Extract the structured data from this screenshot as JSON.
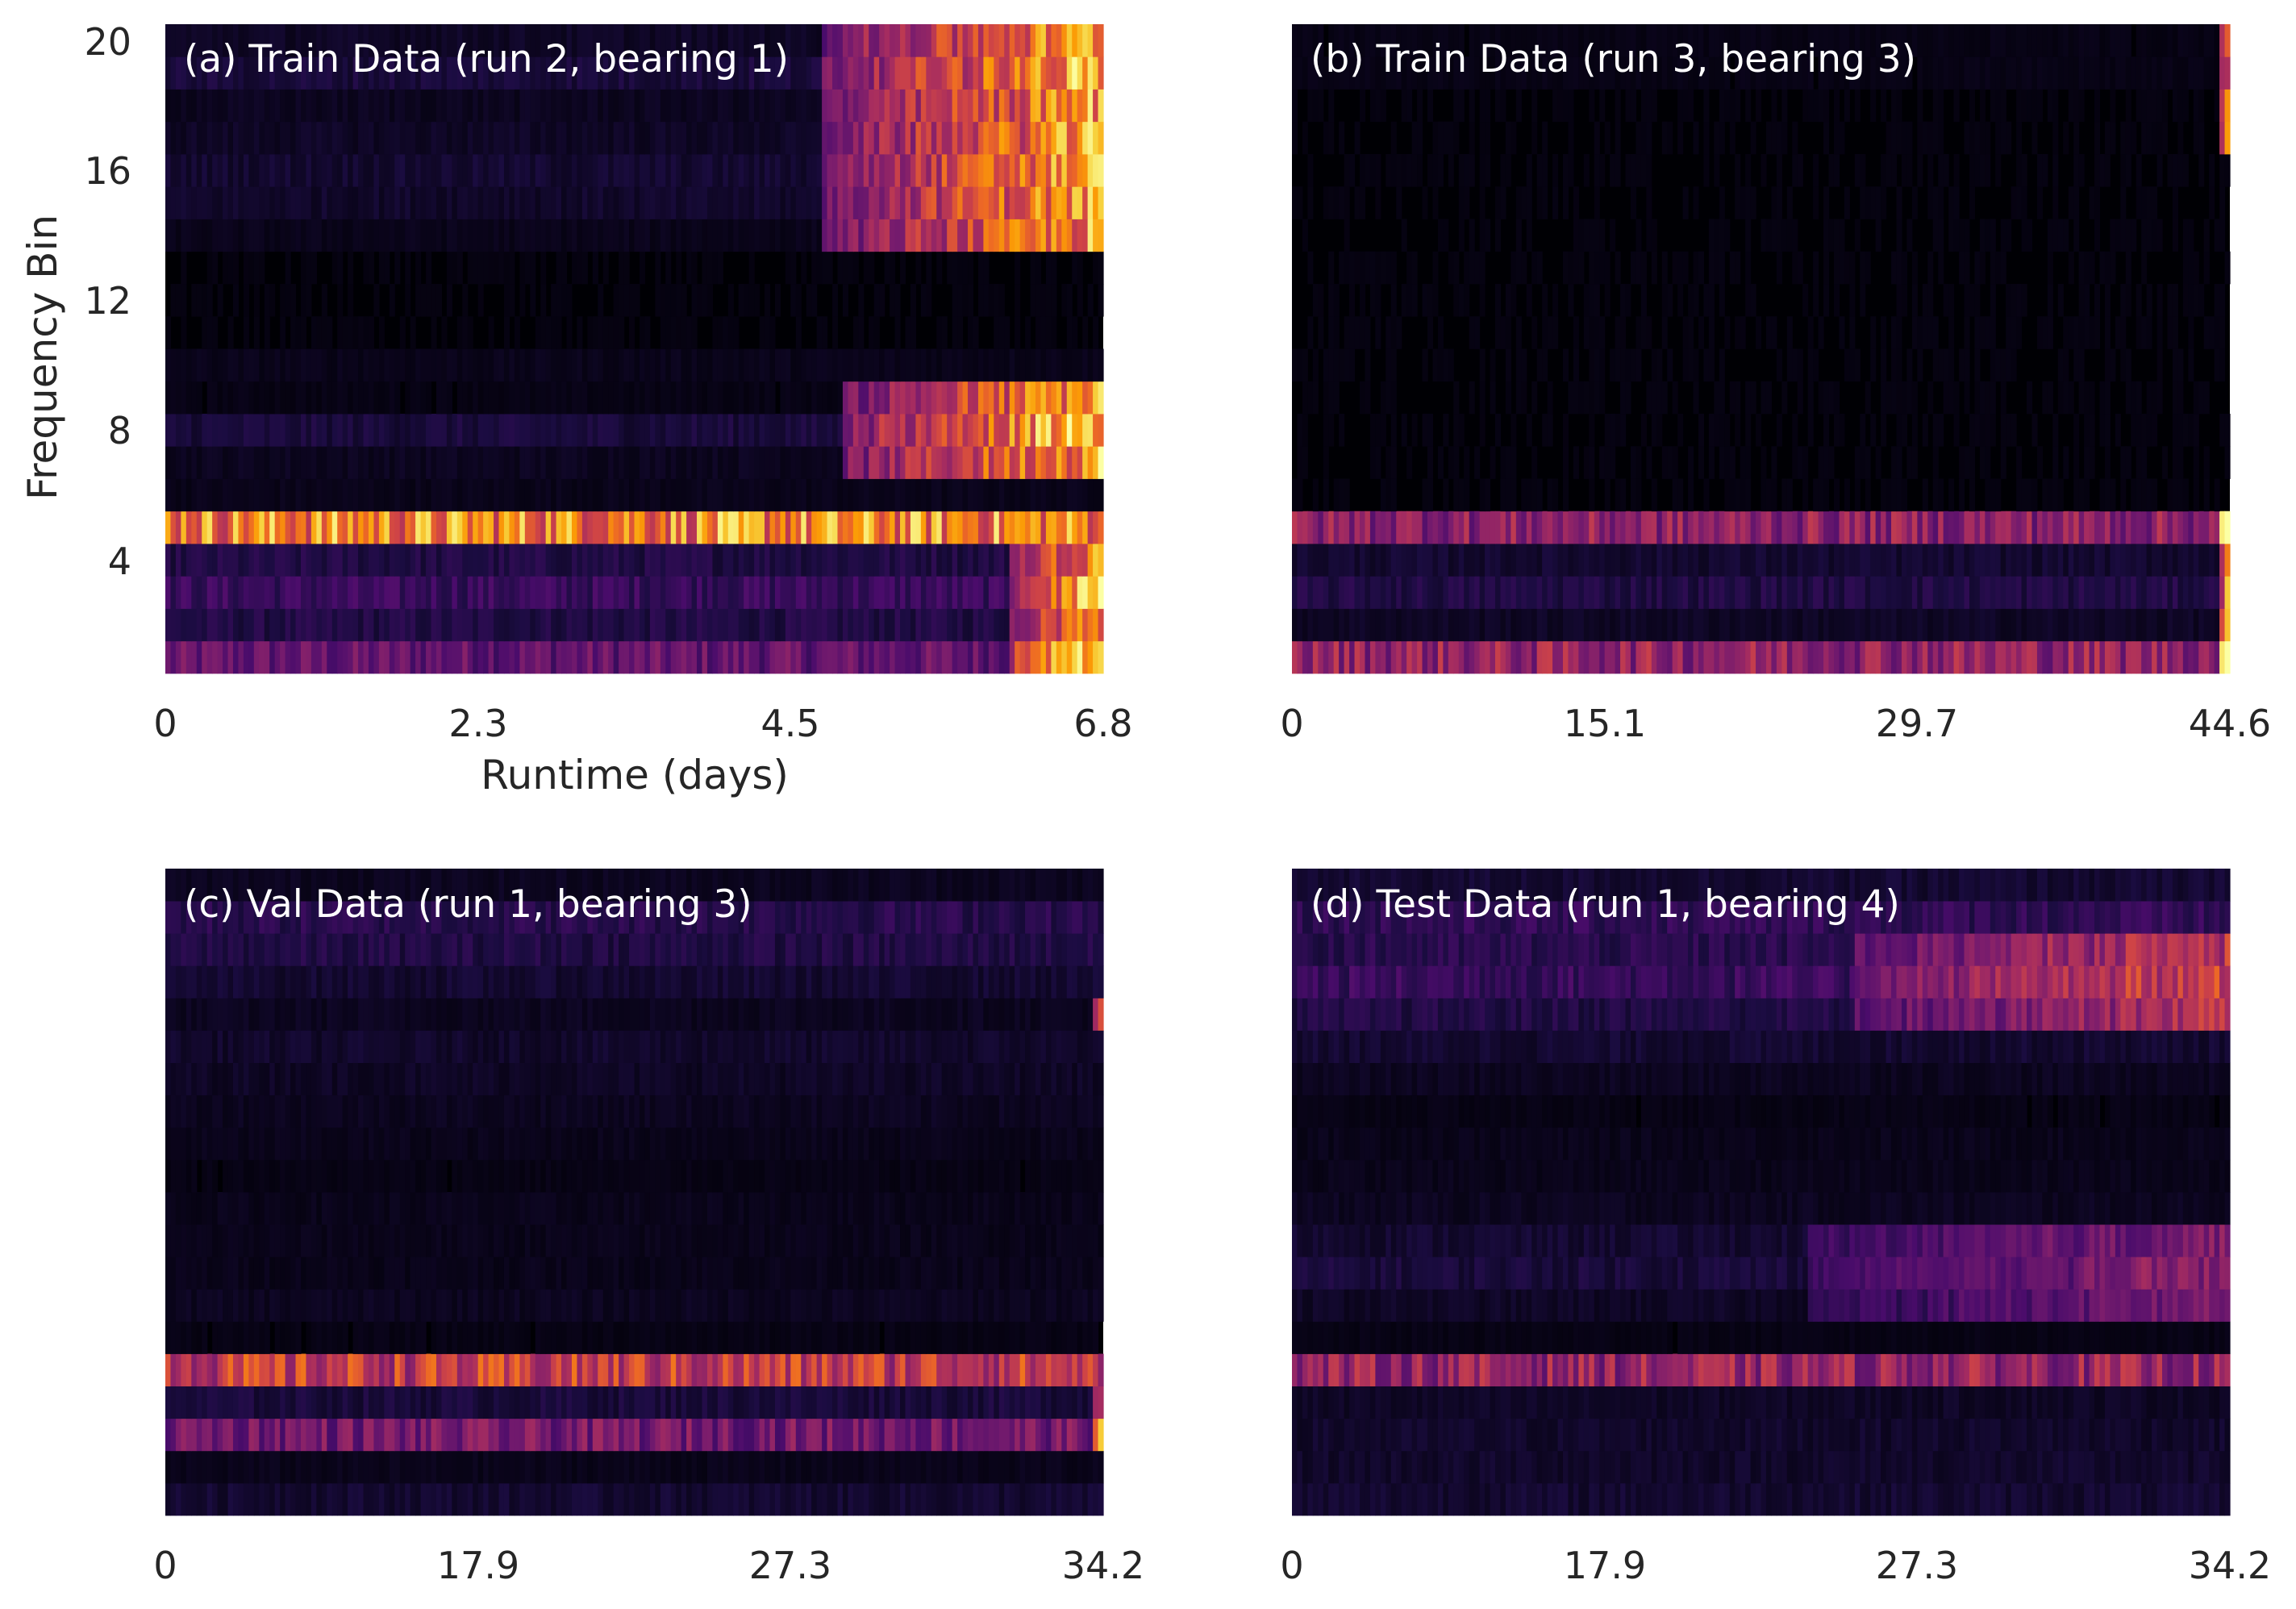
{
  "colormap": [
    "#000004",
    "#1b0c41",
    "#4a0c6b",
    "#781c6d",
    "#a52c60",
    "#cf4446",
    "#ed6925",
    "#fb9b06",
    "#f7d13d",
    "#fcffa4"
  ],
  "chart_data": [
    {
      "type": "heatmap",
      "title": "(a) Train Data (run 2, bearing 1)",
      "xlabel": "Runtime (days)",
      "ylabel": "Frequency Bin",
      "x_ticks": [
        "0",
        "2.3",
        "4.5",
        "6.8"
      ],
      "y_ticks": [
        "4",
        "8",
        "12",
        "16",
        "20"
      ],
      "x_range": [
        0,
        6.8
      ],
      "y_range": [
        0.5,
        20.5
      ],
      "grid": false,
      "bins": 20,
      "bin_levels": [
        0.28,
        0.12,
        0.18,
        0.12,
        0.72,
        0.04,
        0.05,
        0.1,
        0.03,
        0.04,
        0.02,
        0.02,
        0.02,
        0.04,
        0.07,
        0.08,
        0.06,
        0.05,
        0.1,
        0.06
      ],
      "events": [
        {
          "bins": [
            1,
            2,
            3,
            4
          ],
          "start": 0.9,
          "level": 0.8
        },
        {
          "bins": [
            7,
            8,
            9
          ],
          "start": 0.72,
          "level": 0.85
        },
        {
          "bins": [
            14,
            15,
            16,
            17,
            18,
            19,
            20
          ],
          "start": 0.7,
          "level": 0.8
        }
      ]
    },
    {
      "type": "heatmap",
      "title": "(b) Train Data (run 3, bearing 3)",
      "xlabel": "",
      "ylabel": "",
      "x_ticks": [
        "0",
        "15.1",
        "29.7",
        "44.6"
      ],
      "y_ticks": [],
      "x_range": [
        0,
        44.6
      ],
      "y_range": [
        0.5,
        20.5
      ],
      "grid": false,
      "bins": 20,
      "bin_levels": [
        0.4,
        0.06,
        0.12,
        0.08,
        0.38,
        0.02,
        0.02,
        0.02,
        0.02,
        0.02,
        0.02,
        0.02,
        0.02,
        0.02,
        0.02,
        0.02,
        0.02,
        0.02,
        0.03,
        0.03
      ],
      "events": [
        {
          "bins": [
            1,
            2,
            3,
            4,
            5,
            17,
            18,
            19,
            20
          ],
          "start": 0.985,
          "level": 0.9
        }
      ]
    },
    {
      "type": "heatmap",
      "title": "(c) Val Data (run 1, bearing 3)",
      "xlabel": "",
      "ylabel": "",
      "x_ticks": [
        "0",
        "17.9",
        "27.3",
        "34.2"
      ],
      "y_ticks": [],
      "x_range": [
        0,
        34.2
      ],
      "y_range": [
        0.5,
        20.5
      ],
      "grid": false,
      "bins": 20,
      "bin_levels": [
        0.08,
        0.04,
        0.32,
        0.1,
        0.52,
        0.03,
        0.05,
        0.04,
        0.04,
        0.04,
        0.03,
        0.04,
        0.05,
        0.06,
        0.07,
        0.05,
        0.08,
        0.12,
        0.14,
        0.05
      ],
      "events": [
        {
          "bins": [
            3,
            4,
            16
          ],
          "start": 0.985,
          "level": 0.65
        }
      ]
    },
    {
      "type": "heatmap",
      "title": "(d) Test Data (run 1, bearing 4)",
      "xlabel": "",
      "ylabel": "",
      "x_ticks": [
        "0",
        "17.9",
        "27.3",
        "34.2"
      ],
      "y_ticks": [],
      "x_range": [
        0,
        34.2
      ],
      "y_range": [
        0.5,
        20.5
      ],
      "grid": false,
      "bins": 20,
      "bin_levels": [
        0.08,
        0.07,
        0.07,
        0.06,
        0.4,
        0.03,
        0.06,
        0.1,
        0.08,
        0.05,
        0.04,
        0.04,
        0.03,
        0.05,
        0.08,
        0.12,
        0.18,
        0.14,
        0.16,
        0.08
      ],
      "events": [
        {
          "bins": [
            16,
            17,
            18
          ],
          "start": 0.6,
          "level": 0.42
        },
        {
          "bins": [
            7,
            8,
            9
          ],
          "start": 0.55,
          "level": 0.3
        }
      ]
    }
  ]
}
